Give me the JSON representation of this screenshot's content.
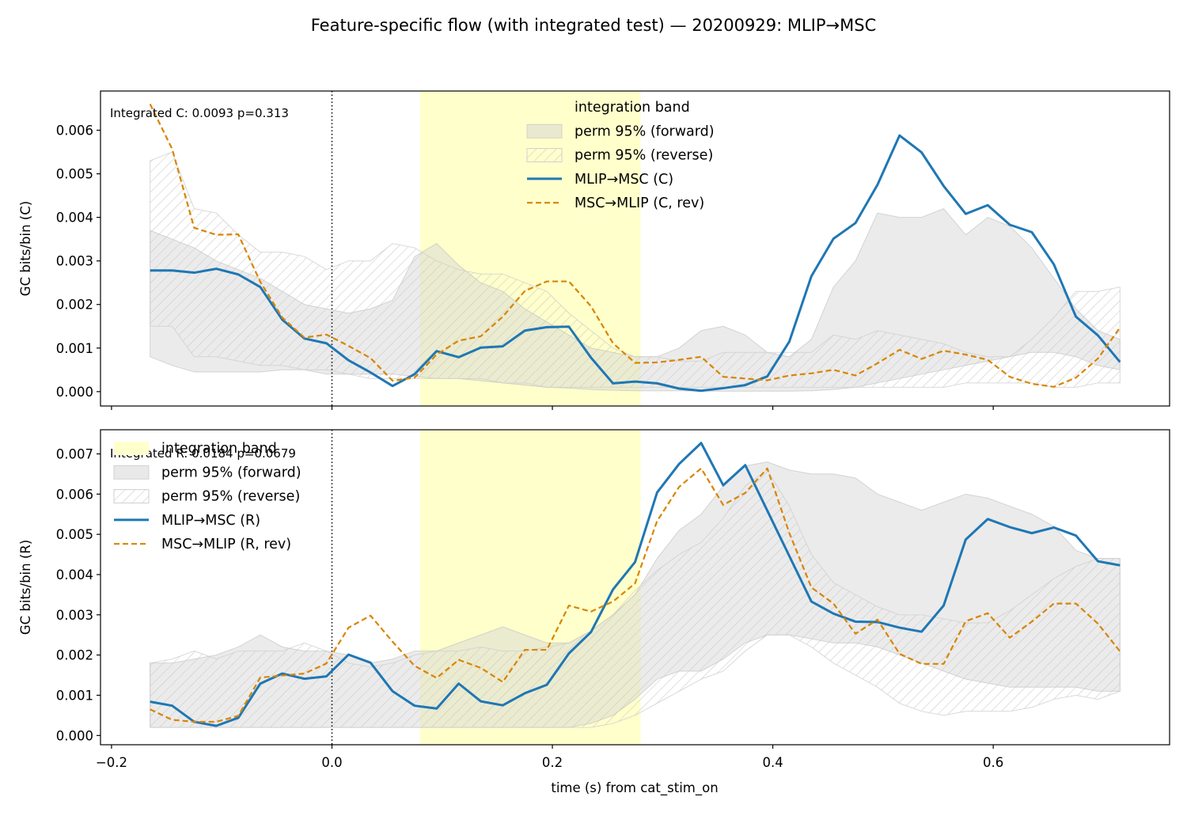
{
  "figure": {
    "title": "Feature-specific flow (with integrated test) — 20200929: MLIP→MSC",
    "xlabel": "time (s) from cat_stim_on"
  },
  "colors": {
    "forward_line": "#1f77b4",
    "reverse_line": "#d98500",
    "integration_band": "#ffffcc",
    "perm_forward_fill": "#d3d3d3",
    "perm_reverse_hatch": "#c8c8c8"
  },
  "chart_data": [
    {
      "type": "line",
      "panel": "top",
      "ylabel": "GC bits/bin (C)",
      "annotation": "Integrated C: 0.0093  p=0.313",
      "xlim": [
        -0.21,
        0.76
      ],
      "ylim": [
        -0.00033,
        0.0069
      ],
      "xticks": [
        -0.2,
        0.0,
        0.2,
        0.4,
        0.6
      ],
      "xtick_labels": [],
      "yticks": [
        0.0,
        0.001,
        0.002,
        0.003,
        0.004,
        0.005,
        0.006
      ],
      "ytick_labels": [
        "0.000",
        "0.001",
        "0.002",
        "0.003",
        "0.004",
        "0.005",
        "0.006"
      ],
      "vline_x": 0.0,
      "integration_band": [
        0.08,
        0.28
      ],
      "legend": {
        "placement": "upper-center",
        "entries": [
          "integration band",
          "perm 95% (forward)",
          "perm 95% (reverse)",
          "MLIP→MSC (C)",
          "MSC→MLIP (C, rev)"
        ]
      },
      "x": [
        -0.165,
        -0.145,
        -0.125,
        -0.105,
        -0.085,
        -0.065,
        -0.045,
        -0.025,
        -0.005,
        0.015,
        0.035,
        0.055,
        0.075,
        0.095,
        0.115,
        0.135,
        0.155,
        0.175,
        0.195,
        0.215,
        0.235,
        0.255,
        0.275,
        0.295,
        0.315,
        0.335,
        0.355,
        0.375,
        0.395,
        0.415,
        0.435,
        0.455,
        0.475,
        0.495,
        0.515,
        0.535,
        0.555,
        0.575,
        0.595,
        0.615,
        0.635,
        0.655,
        0.675,
        0.695,
        0.715
      ],
      "series": [
        {
          "name": "MLIP→MSC (C)",
          "style": "solid",
          "values": [
            0.00278,
            0.00278,
            0.00273,
            0.00282,
            0.00269,
            0.0024,
            0.00165,
            0.00122,
            0.00111,
            0.00072,
            0.00044,
            0.00013,
            0.0004,
            0.00093,
            0.00079,
            0.00101,
            0.00104,
            0.0014,
            0.00148,
            0.00149,
            0.00078,
            0.00019,
            0.00023,
            0.00019,
            7e-05,
            2e-05,
            8e-05,
            0.00015,
            0.00035,
            0.00115,
            0.00265,
            0.00351,
            0.00387,
            0.00475,
            0.00588,
            0.00549,
            0.00472,
            0.00408,
            0.00428,
            0.00383,
            0.00366,
            0.00292,
            0.00172,
            0.00129,
            0.00068
          ]
        },
        {
          "name": "MSC→MLIP (C, rev)",
          "style": "dashed",
          "values": [
            0.0066,
            0.00557,
            0.00376,
            0.0036,
            0.00361,
            0.00252,
            0.0017,
            0.00124,
            0.00131,
            0.00105,
            0.00077,
            0.00025,
            0.00032,
            0.00085,
            0.00117,
            0.00127,
            0.00172,
            0.00231,
            0.00253,
            0.00253,
            0.00196,
            0.00111,
            0.00066,
            0.00067,
            0.00073,
            0.0008,
            0.00034,
            0.0003,
            0.00026,
            0.00037,
            0.00042,
            0.0005,
            0.00037,
            0.00065,
            0.00096,
            0.00075,
            0.00094,
            0.00085,
            0.00073,
            0.00034,
            0.00018,
            0.00011,
            0.00032,
            0.00076,
            0.00147
          ]
        }
      ],
      "perm_forward": {
        "lower": [
          0.0008,
          0.0006,
          0.00045,
          0.00045,
          0.00045,
          0.00045,
          0.0005,
          0.0005,
          0.0004,
          0.0004,
          0.0004,
          0.0004,
          0.00035,
          0.0003,
          0.0003,
          0.00025,
          0.0002,
          0.00015,
          0.0001,
          8e-05,
          5e-05,
          3e-05,
          2e-05,
          2e-05,
          2e-05,
          1e-05,
          1e-05,
          1e-05,
          1e-05,
          1e-05,
          2e-05,
          5e-05,
          0.0001,
          0.0002,
          0.0003,
          0.0004,
          0.0005,
          0.0006,
          0.0007,
          0.0008,
          0.0009,
          0.0009,
          0.0008,
          0.0006,
          0.0005
        ],
        "upper": [
          0.0037,
          0.0035,
          0.0033,
          0.003,
          0.0028,
          0.0026,
          0.0023,
          0.002,
          0.0019,
          0.0018,
          0.0019,
          0.0021,
          0.0031,
          0.0034,
          0.0029,
          0.0025,
          0.0023,
          0.0019,
          0.0016,
          0.0013,
          0.001,
          0.0009,
          0.0008,
          0.0008,
          0.001,
          0.0014,
          0.0015,
          0.0013,
          0.0009,
          0.0008,
          0.0012,
          0.0024,
          0.003,
          0.0041,
          0.004,
          0.004,
          0.0042,
          0.0036,
          0.004,
          0.0038,
          0.0033,
          0.0026,
          0.0019,
          0.0014,
          0.0012
        ]
      },
      "perm_reverse": {
        "lower": [
          0.0015,
          0.0015,
          0.0008,
          0.0008,
          0.0007,
          0.0006,
          0.0006,
          0.0005,
          0.0005,
          0.0004,
          0.0003,
          0.0003,
          0.0003,
          0.0003,
          0.0003,
          0.0003,
          0.0002,
          0.0002,
          0.0001,
          0.0001,
          0.0001,
          0.0001,
          0.0001,
          0.0001,
          0.0001,
          0.0001,
          0.0001,
          0.0001,
          0.0001,
          0.0001,
          0.0001,
          0.0001,
          0.0001,
          0.0001,
          0.0001,
          0.0001,
          0.0001,
          0.0002,
          0.0002,
          0.0002,
          0.0002,
          0.0001,
          0.0001,
          0.0002,
          0.0002
        ],
        "upper": [
          0.0053,
          0.0055,
          0.0042,
          0.0041,
          0.0036,
          0.0032,
          0.0032,
          0.0031,
          0.0028,
          0.003,
          0.003,
          0.0034,
          0.0033,
          0.003,
          0.0028,
          0.0027,
          0.0027,
          0.0025,
          0.0023,
          0.0018,
          0.0014,
          0.001,
          0.0008,
          0.0008,
          0.0007,
          0.0007,
          0.0009,
          0.0009,
          0.0009,
          0.0009,
          0.0009,
          0.0013,
          0.0012,
          0.0014,
          0.0013,
          0.0012,
          0.0011,
          0.0009,
          0.0008,
          0.0008,
          0.0012,
          0.0017,
          0.0023,
          0.0023,
          0.0024
        ]
      }
    },
    {
      "type": "line",
      "panel": "bottom",
      "ylabel": "GC bits/bin (R)",
      "annotation": "Integrated R: 0.0184  p=0.0679",
      "xlim": [
        -0.21,
        0.76
      ],
      "ylim": [
        -0.00023,
        0.0076
      ],
      "xticks": [
        -0.2,
        0.0,
        0.2,
        0.4,
        0.6
      ],
      "xtick_labels": [
        "−0.2",
        "0.0",
        "0.2",
        "0.4",
        "0.6"
      ],
      "yticks": [
        0.0,
        0.001,
        0.002,
        0.003,
        0.004,
        0.005,
        0.006,
        0.007
      ],
      "ytick_labels": [
        "0.000",
        "0.001",
        "0.002",
        "0.003",
        "0.004",
        "0.005",
        "0.006",
        "0.007"
      ],
      "vline_x": 0.0,
      "integration_band": [
        0.08,
        0.28
      ],
      "legend": {
        "placement": "upper-left",
        "entries": [
          "integration band",
          "perm 95% (forward)",
          "perm 95% (reverse)",
          "MLIP→MSC (R)",
          "MSC→MLIP (R, rev)"
        ]
      },
      "x": [
        -0.165,
        -0.145,
        -0.125,
        -0.105,
        -0.085,
        -0.065,
        -0.045,
        -0.025,
        -0.005,
        0.015,
        0.035,
        0.055,
        0.075,
        0.095,
        0.115,
        0.135,
        0.155,
        0.175,
        0.195,
        0.215,
        0.235,
        0.255,
        0.275,
        0.295,
        0.315,
        0.335,
        0.355,
        0.375,
        0.395,
        0.415,
        0.435,
        0.455,
        0.475,
        0.495,
        0.515,
        0.535,
        0.555,
        0.575,
        0.595,
        0.615,
        0.635,
        0.655,
        0.675,
        0.695,
        0.715
      ],
      "series": [
        {
          "name": "MLIP→MSC (R)",
          "style": "solid",
          "values": [
            0.00084,
            0.00074,
            0.00034,
            0.00024,
            0.00044,
            0.00129,
            0.00154,
            0.00141,
            0.00147,
            0.00201,
            0.00181,
            0.0011,
            0.00074,
            0.00067,
            0.00129,
            0.00085,
            0.00075,
            0.00105,
            0.00126,
            0.00204,
            0.00257,
            0.00363,
            0.00431,
            0.00604,
            0.00675,
            0.00727,
            0.00622,
            0.00672,
            0.00559,
            0.00446,
            0.00333,
            0.00303,
            0.00283,
            0.00282,
            0.00268,
            0.00258,
            0.00323,
            0.00487,
            0.00538,
            0.00518,
            0.00503,
            0.00517,
            0.00497,
            0.00433,
            0.00423
          ]
        },
        {
          "name": "MSC→MLIP (R, rev)",
          "style": "dashed",
          "values": [
            0.00065,
            0.00039,
            0.00034,
            0.00034,
            0.00049,
            0.00144,
            0.00149,
            0.00154,
            0.00179,
            0.00268,
            0.00298,
            0.00233,
            0.00173,
            0.00143,
            0.00188,
            0.00168,
            0.00133,
            0.00213,
            0.00213,
            0.00323,
            0.00308,
            0.00333,
            0.00378,
            0.00533,
            0.00618,
            0.00664,
            0.00573,
            0.00603,
            0.00664,
            0.00503,
            0.00368,
            0.00328,
            0.00253,
            0.00288,
            0.00203,
            0.00178,
            0.00178,
            0.00284,
            0.00304,
            0.00243,
            0.00283,
            0.00328,
            0.00328,
            0.00278,
            0.00209
          ]
        }
      ],
      "perm_forward": {
        "lower": [
          0.0002,
          0.0002,
          0.0002,
          0.0002,
          0.0002,
          0.0002,
          0.0002,
          0.0002,
          0.0002,
          0.0002,
          0.0002,
          0.0002,
          0.0002,
          0.0002,
          0.0002,
          0.0002,
          0.0002,
          0.0002,
          0.0002,
          0.0002,
          0.0003,
          0.0005,
          0.0009,
          0.0014,
          0.0016,
          0.0016,
          0.0019,
          0.0023,
          0.0025,
          0.0025,
          0.0024,
          0.0023,
          0.0023,
          0.0022,
          0.002,
          0.0018,
          0.0016,
          0.0014,
          0.0013,
          0.0012,
          0.0012,
          0.0012,
          0.0012,
          0.0011,
          0.0011
        ],
        "upper": [
          0.0018,
          0.0018,
          0.0019,
          0.002,
          0.0022,
          0.0025,
          0.0022,
          0.0021,
          0.0021,
          0.002,
          0.0018,
          0.0019,
          0.0021,
          0.0021,
          0.0023,
          0.0025,
          0.0027,
          0.0025,
          0.0023,
          0.0023,
          0.0026,
          0.003,
          0.0035,
          0.0044,
          0.0051,
          0.0055,
          0.0062,
          0.0067,
          0.0068,
          0.0066,
          0.0065,
          0.0065,
          0.0064,
          0.006,
          0.0058,
          0.0056,
          0.0058,
          0.006,
          0.0059,
          0.0057,
          0.0055,
          0.0052,
          0.0046,
          0.0044,
          0.0044
        ]
      },
      "perm_reverse": {
        "lower": [
          0.0002,
          0.0002,
          0.0002,
          0.0002,
          0.0002,
          0.0002,
          0.0002,
          0.0002,
          0.0002,
          0.0002,
          0.0002,
          0.0002,
          0.0002,
          0.0002,
          0.0002,
          0.0002,
          0.0002,
          0.0002,
          0.0002,
          0.0002,
          0.0002,
          0.0003,
          0.0005,
          0.0008,
          0.0011,
          0.0014,
          0.0016,
          0.0021,
          0.0025,
          0.0025,
          0.0022,
          0.0018,
          0.0015,
          0.0012,
          0.0008,
          0.0006,
          0.0005,
          0.0006,
          0.0006,
          0.0006,
          0.0007,
          0.0009,
          0.001,
          0.0009,
          0.0011
        ],
        "upper": [
          0.0018,
          0.0019,
          0.0021,
          0.0019,
          0.0021,
          0.0021,
          0.0021,
          0.0023,
          0.0021,
          0.0018,
          0.0017,
          0.0018,
          0.002,
          0.0021,
          0.0021,
          0.0022,
          0.0021,
          0.0021,
          0.0022,
          0.0023,
          0.0026,
          0.003,
          0.0036,
          0.0041,
          0.0045,
          0.0048,
          0.0054,
          0.0062,
          0.0066,
          0.0057,
          0.0045,
          0.0038,
          0.0035,
          0.0032,
          0.003,
          0.003,
          0.0029,
          0.0028,
          0.0028,
          0.0031,
          0.0035,
          0.0039,
          0.0042,
          0.0044,
          0.0044
        ]
      }
    }
  ]
}
